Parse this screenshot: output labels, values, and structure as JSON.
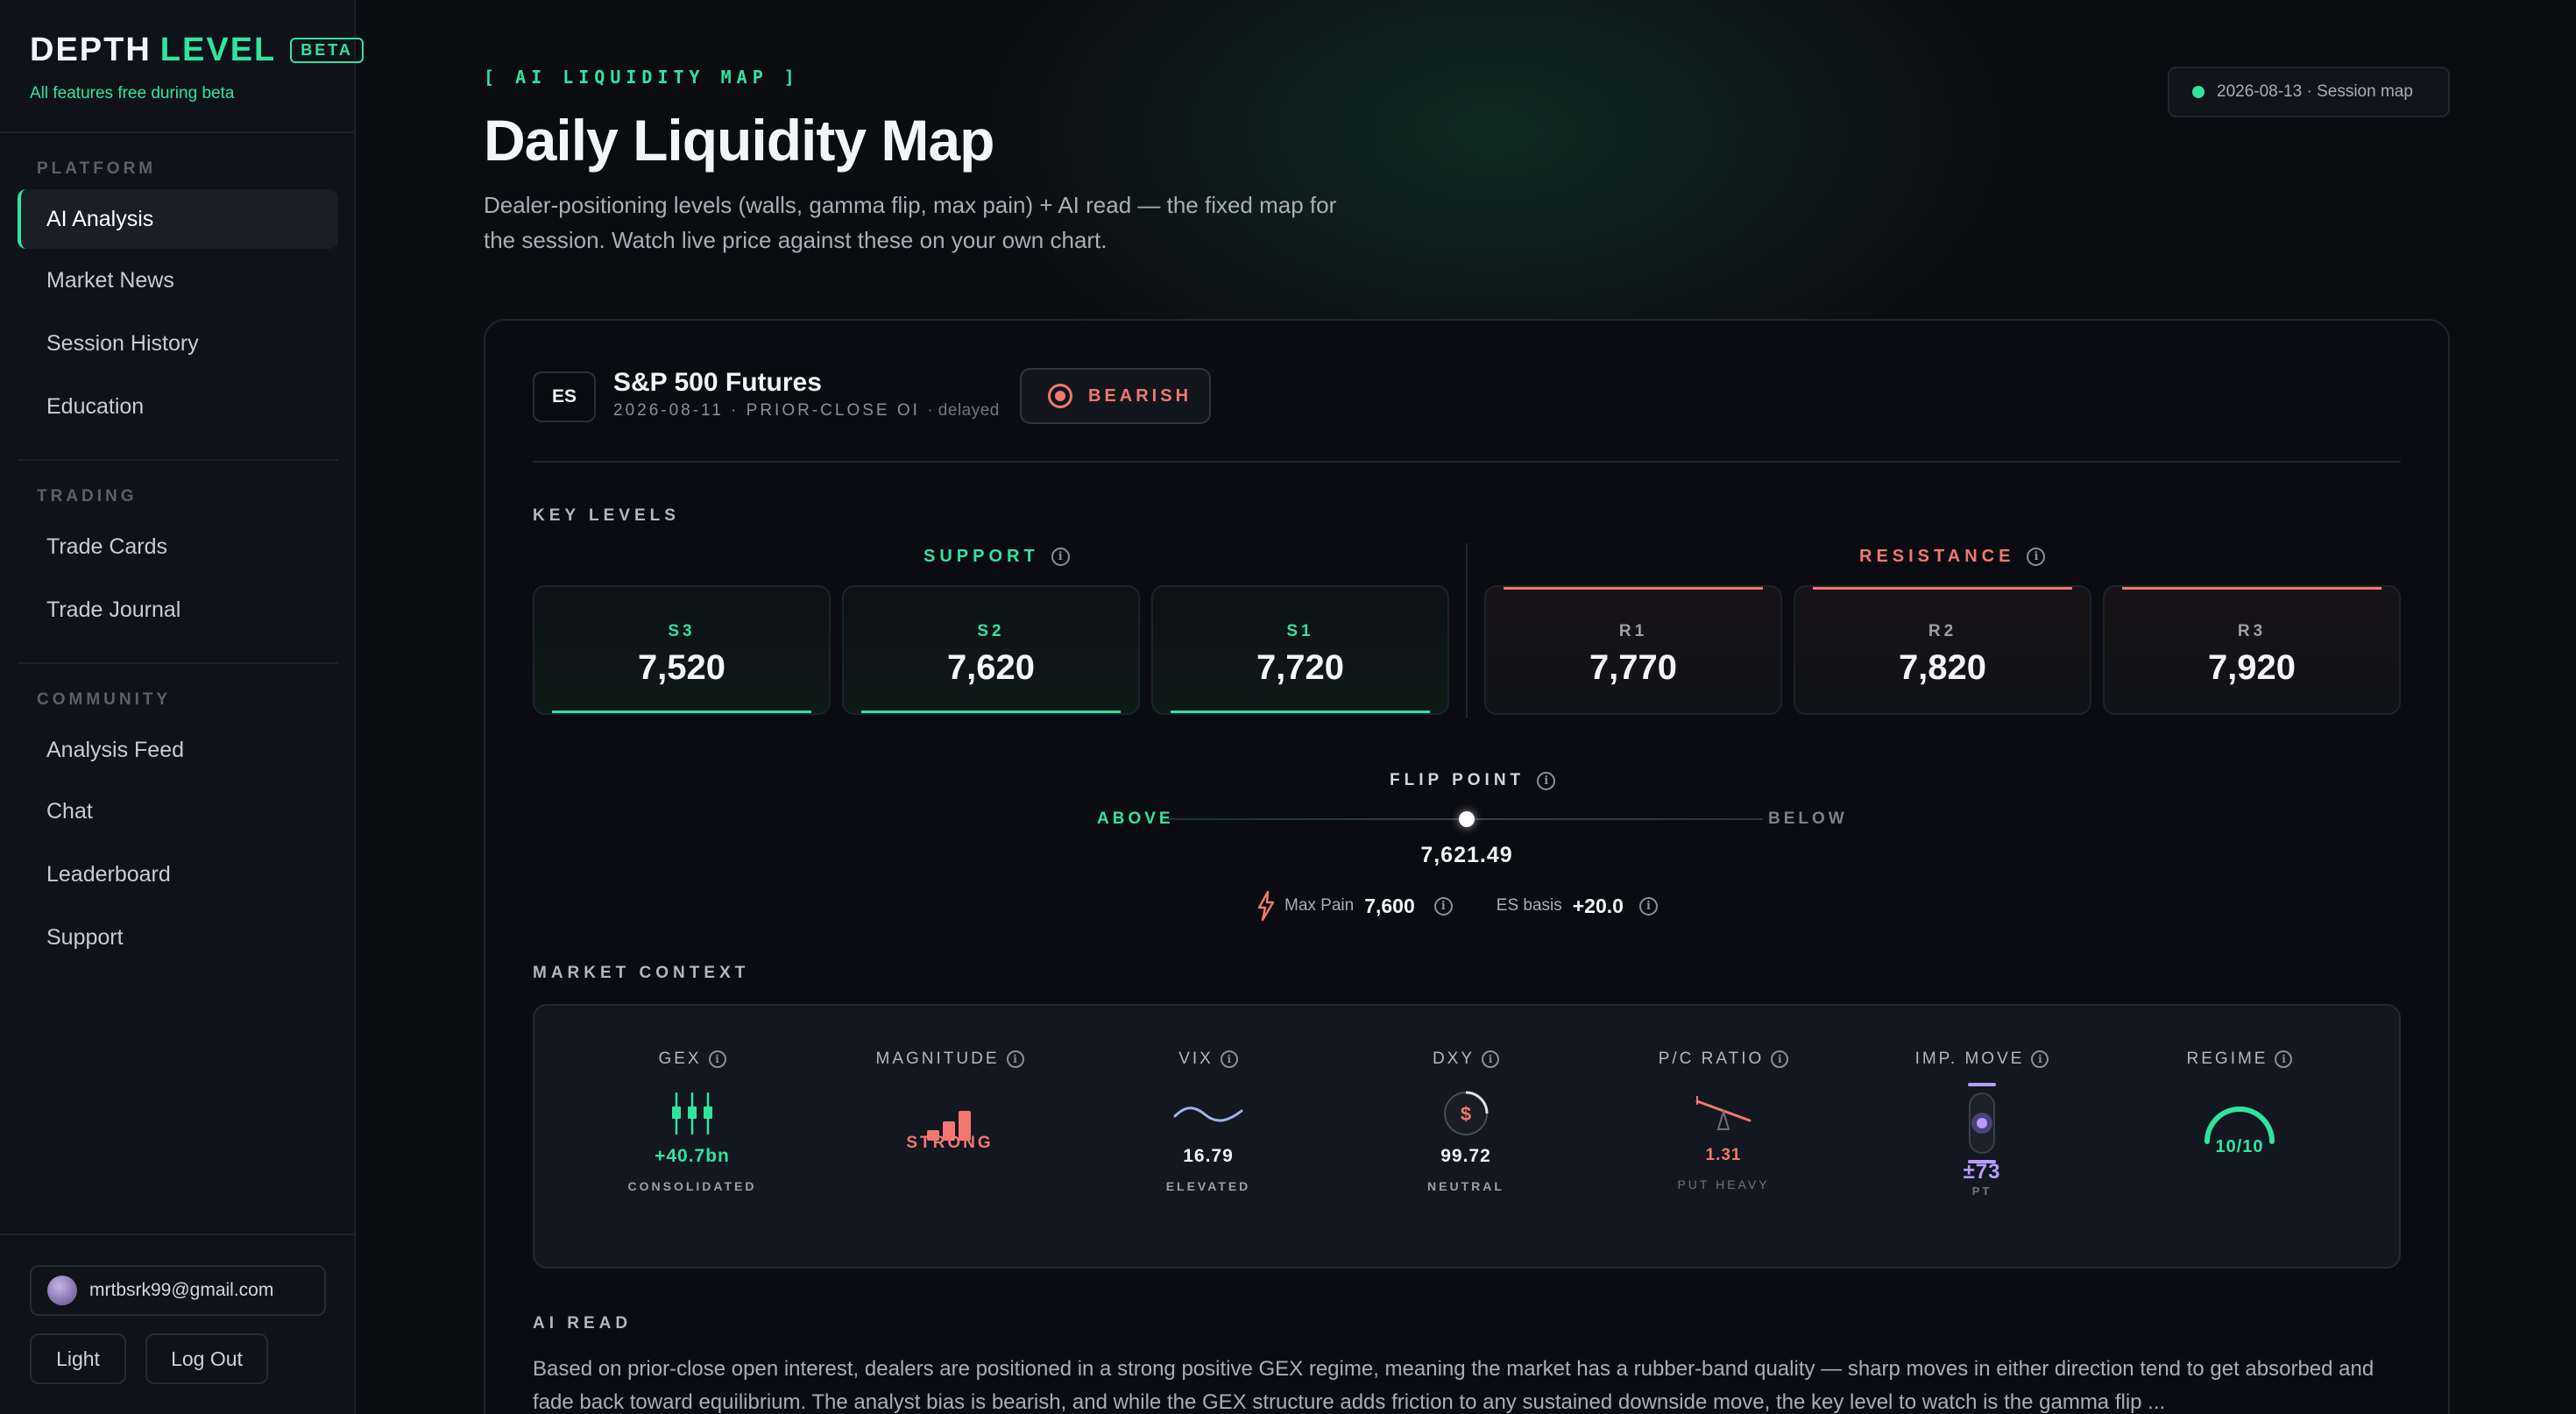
{
  "brand": {
    "word1": "DEPTH",
    "word2": "LEVEL",
    "badge": "BETA",
    "subtitle": "All features free during beta"
  },
  "sidebar": {
    "sections": [
      {
        "label": "PLATFORM",
        "items": [
          {
            "label": "AI Analysis",
            "active": true
          },
          {
            "label": "Market News"
          },
          {
            "label": "Session History"
          },
          {
            "label": "Education"
          }
        ]
      },
      {
        "label": "TRADING",
        "items": [
          {
            "label": "Trade Cards"
          },
          {
            "label": "Trade Journal"
          }
        ]
      },
      {
        "label": "COMMUNITY",
        "items": [
          {
            "label": "Analysis Feed"
          },
          {
            "label": "Chat"
          },
          {
            "label": "Leaderboard"
          },
          {
            "label": "Support"
          }
        ]
      }
    ],
    "user_email": "mrtbsrk99@gmail.com",
    "theme_button": "Light",
    "logout_button": "Log Out"
  },
  "header": {
    "kicker": "[ AI LIQUIDITY MAP ]",
    "title": "Daily Liquidity Map",
    "description": "Dealer-positioning levels (walls, gamma flip, max pain) + AI read — the fixed map for the session. Watch live price against these on your own chart.",
    "session_pill": "2026-08-13 · Session map"
  },
  "instrument": {
    "symbol": "ES",
    "name": "S&P 500 Futures",
    "meta": "2026-08-11 · PRIOR-CLOSE OI",
    "meta_delayed": "· delayed",
    "bias": "BEARISH"
  },
  "key_levels": {
    "label": "KEY LEVELS",
    "support_label": "SUPPORT",
    "resistance_label": "RESISTANCE",
    "support": [
      {
        "name": "S3",
        "value": "7,520"
      },
      {
        "name": "S2",
        "value": "7,620"
      },
      {
        "name": "S1",
        "value": "7,720"
      }
    ],
    "resistance": [
      {
        "name": "R1",
        "value": "7,770"
      },
      {
        "name": "R2",
        "value": "7,820"
      },
      {
        "name": "R3",
        "value": "7,920"
      }
    ]
  },
  "flip": {
    "label": "FLIP POINT",
    "above": "ABOVE",
    "below": "BELOW",
    "value": "7,621.49",
    "max_pain_label": "Max Pain",
    "max_pain_value": "7,600",
    "basis_label": "ES basis",
    "basis_value": "+20.0"
  },
  "market_context": {
    "label": "MARKET CONTEXT",
    "items": [
      {
        "title": "GEX",
        "value": "+40.7bn",
        "sub": "CONSOLIDATED",
        "color": "#2ee59d",
        "icon": "candles-icon"
      },
      {
        "title": "MAGNITUDE",
        "value": "STRONG",
        "sub": "",
        "color": "#f2786f",
        "icon": "bars-icon"
      },
      {
        "title": "VIX",
        "value": "16.79",
        "sub": "ELEVATED",
        "color": "#f0f2f4",
        "icon": "wave-icon"
      },
      {
        "title": "DXY",
        "value": "99.72",
        "sub": "NEUTRAL",
        "color": "#f0f2f4",
        "icon": "dollar-icon"
      },
      {
        "title": "P/C RATIO",
        "value": "1.31",
        "sub": "PUT HEAVY",
        "color": "#f2786f",
        "icon": "seesaw-icon"
      },
      {
        "title": "IMP. MOVE",
        "value": "±73",
        "sub": "PT",
        "color": "#b89cff",
        "icon": "range-icon"
      },
      {
        "title": "REGIME",
        "value": "10/10",
        "sub": "",
        "color": "#2ee59d",
        "icon": "gauge-icon"
      }
    ]
  },
  "ai_read": {
    "label": "AI READ",
    "text": "Based on prior-close open interest, dealers are positioned in a strong positive GEX regime, meaning the market has a rubber-band quality — sharp moves in either direction tend to get absorbed and fade back toward equilibrium. The analyst bias is bearish, and while the GEX structure adds friction to any sustained downside move, the key level to watch is the gamma flip ..."
  },
  "colors": {
    "accent": "#2ee59d",
    "bearish": "#f2786f",
    "background": "#0a0c10"
  }
}
